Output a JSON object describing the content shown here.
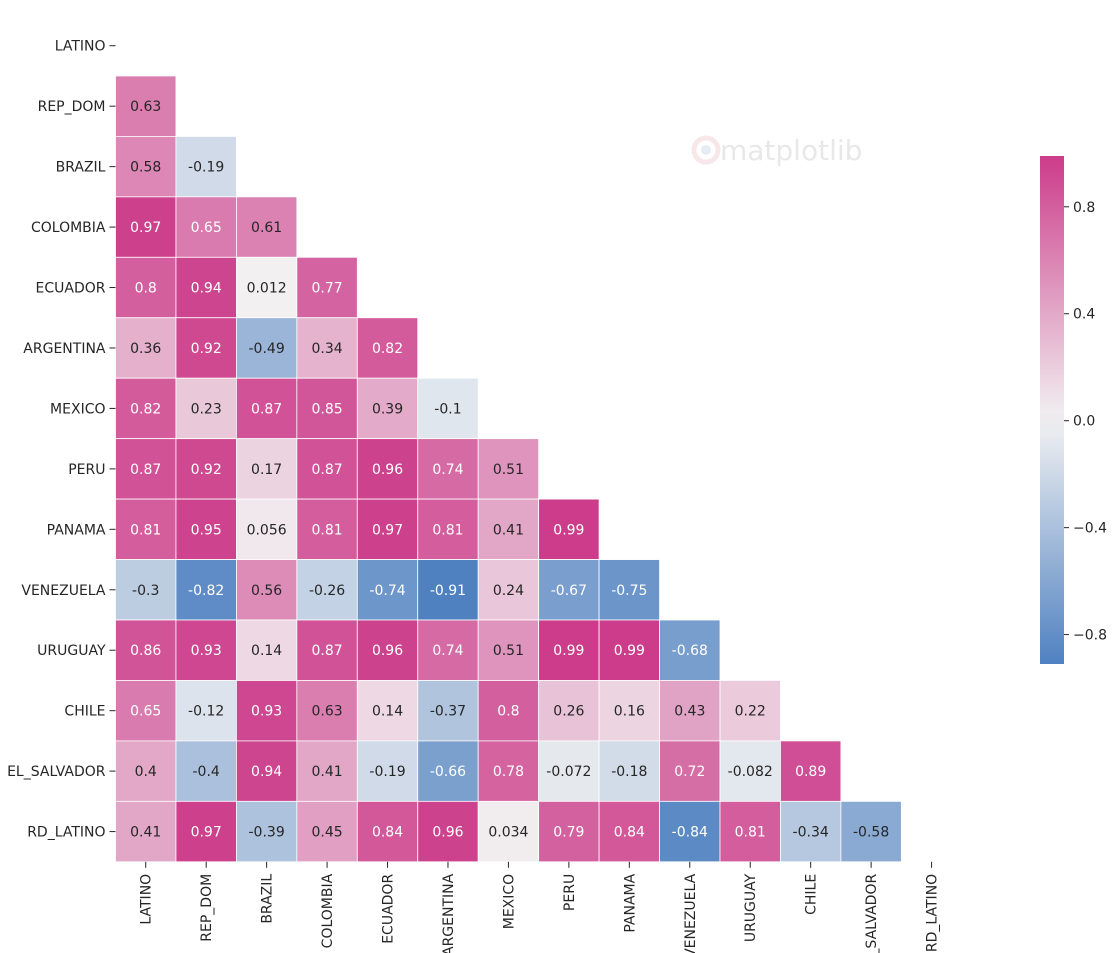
{
  "chart_data": {
    "type": "heatmap",
    "title": "",
    "xlabel": "",
    "ylabel": "",
    "labels": [
      "LATINO",
      "REP_DOM",
      "BRAZIL",
      "COLOMBIA",
      "ECUADOR",
      "ARGENTINA",
      "MEXICO",
      "PERU",
      "PANAMA",
      "VENEZUELA",
      "URUGUAY",
      "CHILE",
      "EL_SALVADOR",
      "RD_LATINO"
    ],
    "mask": "upper-triangle-including-diagonal",
    "values": [
      [],
      [
        "0.63"
      ],
      [
        "0.58",
        "-0.19"
      ],
      [
        "0.97",
        "0.65",
        "0.61"
      ],
      [
        "0.8",
        "0.94",
        "0.012",
        "0.77"
      ],
      [
        "0.36",
        "0.92",
        "-0.49",
        "0.34",
        "0.82"
      ],
      [
        "0.82",
        "0.23",
        "0.87",
        "0.85",
        "0.39",
        "-0.1"
      ],
      [
        "0.87",
        "0.92",
        "0.17",
        "0.87",
        "0.96",
        "0.74",
        "0.51"
      ],
      [
        "0.81",
        "0.95",
        "0.056",
        "0.81",
        "0.97",
        "0.81",
        "0.41",
        "0.99"
      ],
      [
        "-0.3",
        "-0.82",
        "0.56",
        "-0.26",
        "-0.74",
        "-0.91",
        "0.24",
        "-0.67",
        "-0.75"
      ],
      [
        "0.86",
        "0.93",
        "0.14",
        "0.87",
        "0.96",
        "0.74",
        "0.51",
        "0.99",
        "0.99",
        "-0.68"
      ],
      [
        "0.65",
        "-0.12",
        "0.93",
        "0.63",
        "0.14",
        "-0.37",
        "0.8",
        "0.26",
        "0.16",
        "0.43",
        "0.22"
      ],
      [
        "0.4",
        "-0.4",
        "0.94",
        "0.41",
        "-0.19",
        "-0.66",
        "0.78",
        "-0.072",
        "-0.18",
        "0.72",
        "-0.082",
        "0.89"
      ],
      [
        "0.41",
        "0.97",
        "-0.39",
        "0.45",
        "0.84",
        "0.96",
        "0.034",
        "0.79",
        "0.84",
        "-0.84",
        "0.81",
        "-0.34",
        "-0.58"
      ]
    ],
    "colorbar": {
      "vmin": -0.91,
      "vmax": 0.99,
      "ticks": [
        0.8,
        0.4,
        0.0,
        -0.4,
        -0.8
      ],
      "tick_labels": [
        "0.8",
        "0.4",
        "0.0",
        "−0.4",
        "−0.8"
      ]
    },
    "colormap": {
      "negative": "#4f81c1",
      "center": "#f2f2f2",
      "positive": "#cc3c8a"
    },
    "grid": false,
    "watermark": "matplotlib"
  }
}
